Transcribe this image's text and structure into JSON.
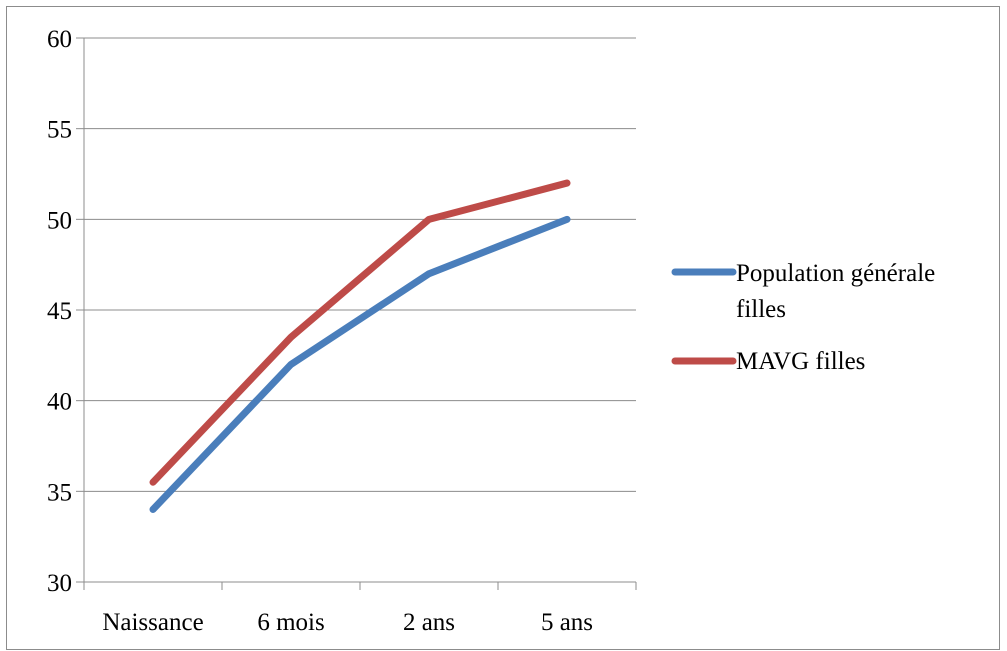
{
  "chart_data": {
    "type": "line",
    "categories": [
      "Naissance",
      "6 mois",
      "2 ans",
      "5 ans"
    ],
    "series": [
      {
        "name": "Population générale filles",
        "name_lines": [
          "Population générale",
          "filles"
        ],
        "color": "#4a7ebb",
        "values": [
          34,
          42,
          47,
          50
        ]
      },
      {
        "name": "MAVG filles",
        "name_lines": [
          "MAVG filles"
        ],
        "color": "#be4b48",
        "values": [
          35.5,
          43.5,
          50,
          52
        ]
      }
    ],
    "title": "",
    "xlabel": "",
    "ylabel": "",
    "ylim": [
      30,
      60
    ],
    "yticks": [
      "30",
      "35",
      "40",
      "45",
      "50",
      "55",
      "60"
    ],
    "grid": true,
    "legend": "right"
  }
}
